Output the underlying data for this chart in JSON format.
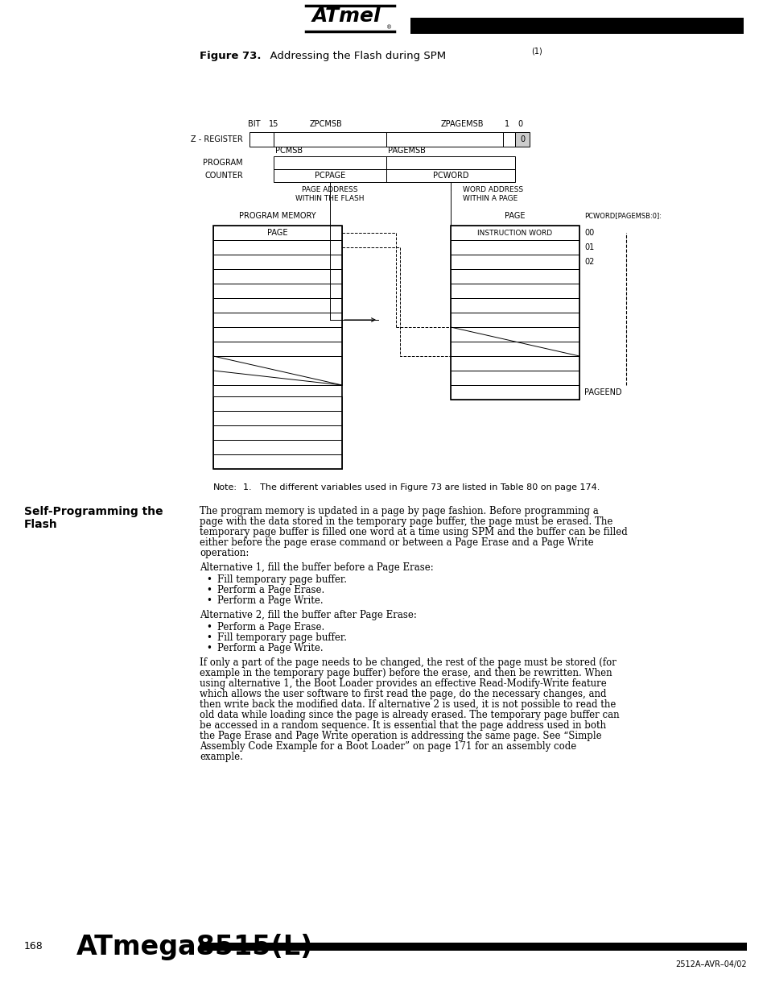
{
  "bg_color": "#ffffff",
  "page_num": "168",
  "model": "ATmega8515(L)",
  "footer_code": "2512A–AVR–04/02",
  "note_text": "1.   The different variables used in Figure 73 are listed in Table 80 on page 174.",
  "body_para1": "The program memory is updated in a page by page fashion. Before programming a page with the data stored in the temporary page buffer, the page must be erased. The temporary page buffer is filled one word at a time using SPM and the buffer can be filled either before the page erase command or between a Page Erase and a Page Write operation:",
  "alt1_header": "Alternative 1, fill the buffer before a Page Erase:",
  "alt1_bullets": [
    "Fill temporary page buffer.",
    "Perform a Page Erase.",
    "Perform a Page Write."
  ],
  "alt2_header": "Alternative 2, fill the buffer after Page Erase:",
  "alt2_bullets": [
    "Perform a Page Erase.",
    "Fill temporary page buffer.",
    "Perform a Page Write."
  ],
  "body_para2": "If only a part of the page needs to be changed, the rest of the page must be stored (for example in the temporary page buffer) before the erase, and then be rewritten. When using alternative 1, the Boot Loader provides an effective Read-Modify-Write feature which allows the user software to first read the page, do the necessary changes, and then write back the modified data. If alternative 2 is used, it is not possible to read the old data while loading since the page is already erased. The temporary page buffer can be accessed in a random sequence. It is essential that the page address used in both the Page Erase and Page Write operation is addressing the same page. See “Simple Assembly Code Example for a Boot Loader” on page 171 for an assembly code example."
}
